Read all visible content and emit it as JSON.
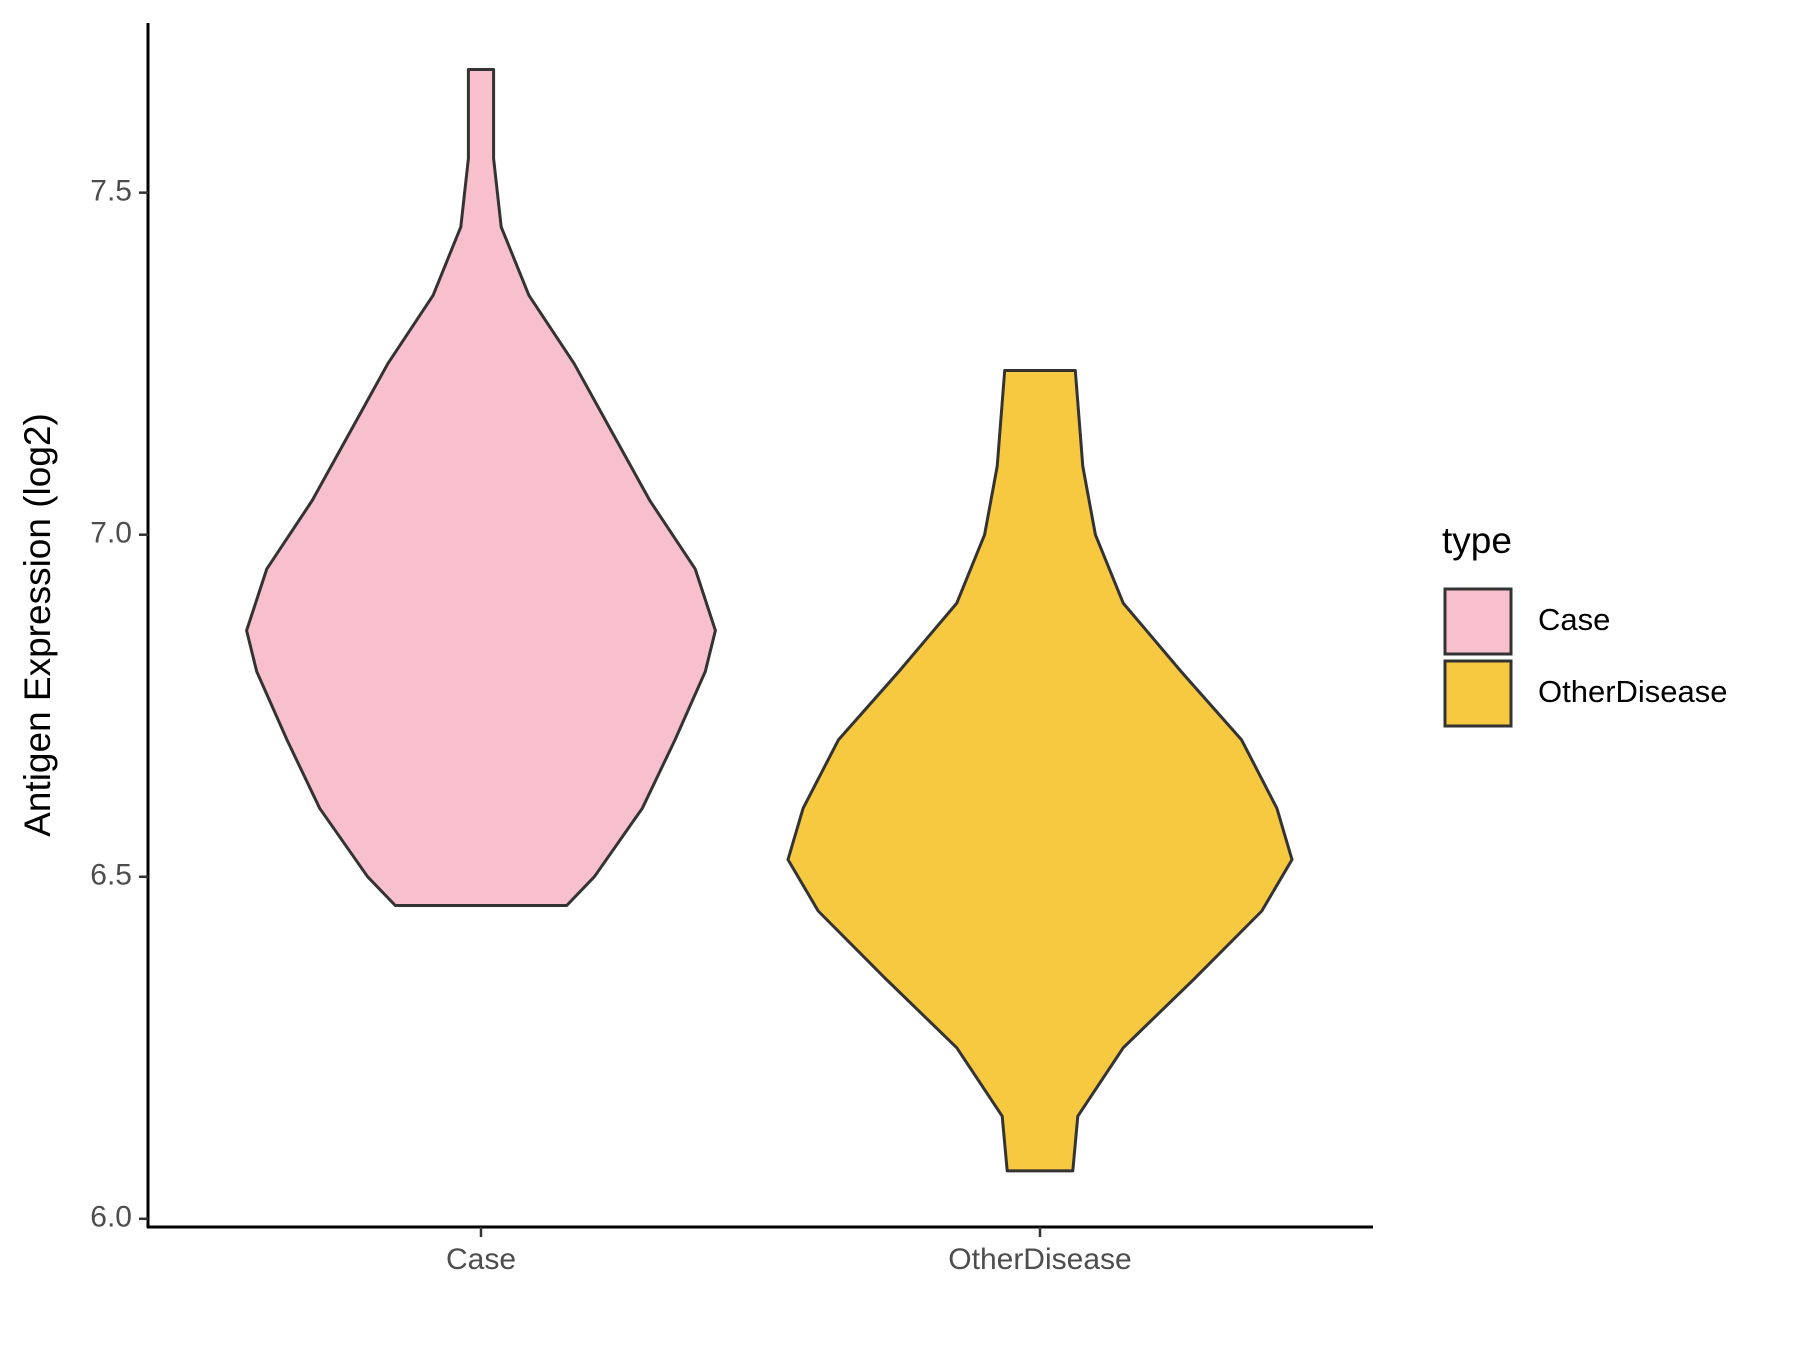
{
  "chart_data": {
    "type": "violin",
    "y_label": "Antigen Expression (log2)",
    "categories": [
      "Case",
      "OtherDisease"
    ],
    "legend_title": "type",
    "legend": "right",
    "series": [
      {
        "name": "Case",
        "color": "#f7c0cc",
        "y": [
          6.458,
          6.5,
          6.6,
          6.7,
          6.8,
          6.86,
          6.95,
          7.05,
          7.15,
          7.25,
          7.35,
          7.45,
          7.55,
          7.68
        ],
        "width": [
          0.34,
          0.45,
          0.64,
          0.77,
          0.89,
          0.93,
          0.85,
          0.67,
          0.52,
          0.37,
          0.19,
          0.08,
          0.05,
          0.05
        ]
      },
      {
        "name": "OtherDisease",
        "color": "#f6c940",
        "y": [
          6.07,
          6.15,
          6.25,
          6.35,
          6.45,
          6.525,
          6.6,
          6.7,
          6.8,
          6.9,
          7.0,
          7.1,
          7.24
        ],
        "width": [
          0.13,
          0.15,
          0.33,
          0.61,
          0.88,
          1.0,
          0.94,
          0.8,
          0.56,
          0.33,
          0.22,
          0.17,
          0.14
        ]
      }
    ],
    "ylim": [
      5.988,
      7.748
    ],
    "yticks": [
      {
        "value": 6,
        "label": "6.0"
      },
      6.5,
      {
        "value": 7,
        "label": "7.0"
      },
      7.5
    ],
    "grid": false
  }
}
